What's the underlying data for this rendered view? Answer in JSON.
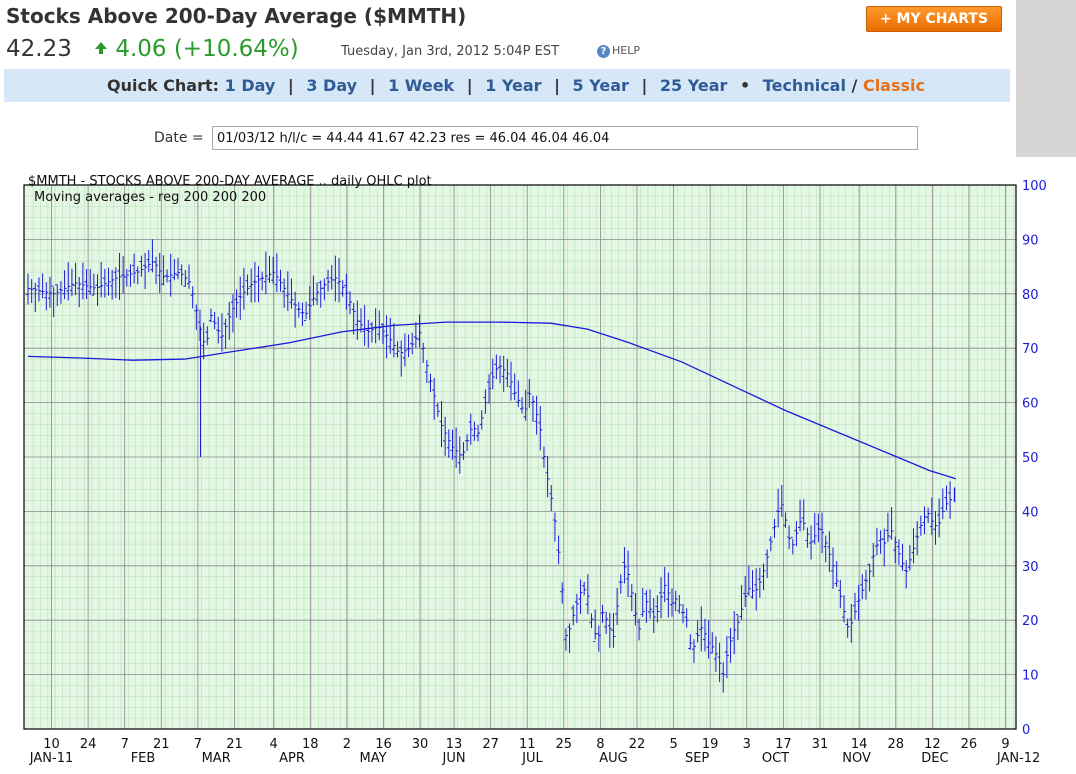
{
  "header": {
    "title": "Stocks Above 200-Day Average ($MMTH)",
    "my_charts": "+ MY CHARTS",
    "price": "42.23",
    "change": "4.06 (+10.64%)",
    "timestamp": "Tuesday, Jan 3rd, 2012 5:04P EST",
    "help": "HELP"
  },
  "quickchart": {
    "label": "Quick Chart:",
    "links": [
      "1 Day",
      "3 Day",
      "1 Week",
      "1 Year",
      "5 Year",
      "25 Year"
    ],
    "technical": "Technical",
    "slash": "/",
    "classic": "Classic"
  },
  "date_row": {
    "label": "Date =",
    "value": "01/03/12 h/l/c = 44.44 41.67 42.23 res = 46.04 46.04 46.04"
  },
  "colors": {
    "accent": "#ff8c1a",
    "link": "#2f5c95",
    "up": "#2a9a2a",
    "plot": "#1a1adb",
    "grid": "#7fcf7f"
  },
  "chart_data": {
    "type": "line",
    "title": "$MMTH - STOCKS ABOVE 200-DAY AVERAGE .. daily OHLC plot",
    "subtitle": "Moving averages - reg 200 200 200",
    "ylim": [
      0,
      100
    ],
    "yticks": [
      0,
      10,
      20,
      30,
      40,
      50,
      60,
      70,
      80,
      90,
      100
    ],
    "xlim": [
      0,
      365
    ],
    "xticks": [
      {
        "day": 9,
        "label": "10"
      },
      {
        "day": 23,
        "label": "24"
      },
      {
        "day": 37,
        "label": "7"
      },
      {
        "day": 51,
        "label": "21"
      },
      {
        "day": 65,
        "label": "7"
      },
      {
        "day": 79,
        "label": "21"
      },
      {
        "day": 94,
        "label": "4"
      },
      {
        "day": 108,
        "label": "18"
      },
      {
        "day": 122,
        "label": "2"
      },
      {
        "day": 136,
        "label": "16"
      },
      {
        "day": 150,
        "label": "30"
      },
      {
        "day": 163,
        "label": "13"
      },
      {
        "day": 177,
        "label": "27"
      },
      {
        "day": 191,
        "label": "11"
      },
      {
        "day": 205,
        "label": "25"
      },
      {
        "day": 219,
        "label": "8"
      },
      {
        "day": 233,
        "label": "22"
      },
      {
        "day": 247,
        "label": "5"
      },
      {
        "day": 261,
        "label": "19"
      },
      {
        "day": 275,
        "label": "3"
      },
      {
        "day": 289,
        "label": "17"
      },
      {
        "day": 303,
        "label": "31"
      },
      {
        "day": 318,
        "label": "14"
      },
      {
        "day": 332,
        "label": "28"
      },
      {
        "day": 346,
        "label": "12"
      },
      {
        "day": 360,
        "label": "26"
      },
      {
        "day": 374,
        "label": "9"
      }
    ],
    "month_labels": [
      {
        "day": 9,
        "label": "JAN-11"
      },
      {
        "day": 44,
        "label": "FEB"
      },
      {
        "day": 72,
        "label": "MAR"
      },
      {
        "day": 101,
        "label": "APR"
      },
      {
        "day": 132,
        "label": "MAY"
      },
      {
        "day": 163,
        "label": "JUN"
      },
      {
        "day": 193,
        "label": "JUL"
      },
      {
        "day": 224,
        "label": "AUG"
      },
      {
        "day": 256,
        "label": "SEP"
      },
      {
        "day": 286,
        "label": "OCT"
      },
      {
        "day": 317,
        "label": "NOV"
      },
      {
        "day": 347,
        "label": "DEC"
      },
      {
        "day": 379,
        "label": "JAN-12"
      }
    ],
    "series": [
      {
        "type": "ohlc",
        "points": [
          [
            0,
            81.0
          ],
          [
            10,
            80.0
          ],
          [
            18,
            82.0
          ],
          [
            26,
            81.0
          ],
          [
            34,
            83.0
          ],
          [
            42,
            84.0
          ],
          [
            48,
            86.0
          ],
          [
            52,
            83.0
          ],
          [
            58,
            84.0
          ],
          [
            62,
            82.0
          ],
          [
            64,
            78.0
          ],
          [
            66,
            73.0
          ],
          [
            68,
            70.0
          ],
          [
            70,
            76.0
          ],
          [
            74,
            72.0
          ],
          [
            78,
            77.0
          ],
          [
            82,
            80.0
          ],
          [
            86,
            82.0
          ],
          [
            90,
            83.0
          ],
          [
            94,
            84.0
          ],
          [
            98,
            81.0
          ],
          [
            102,
            78.0
          ],
          [
            106,
            76.0
          ],
          [
            110,
            80.0
          ],
          [
            114,
            82.0
          ],
          [
            118,
            83.0
          ],
          [
            122,
            80.0
          ],
          [
            126,
            75.0
          ],
          [
            130,
            73.0
          ],
          [
            134,
            74.0
          ],
          [
            138,
            72.0
          ],
          [
            142,
            69.0
          ],
          [
            146,
            70.0
          ],
          [
            150,
            73.0
          ],
          [
            152,
            68.0
          ],
          [
            154,
            64.0
          ],
          [
            156,
            60.0
          ],
          [
            158,
            56.0
          ],
          [
            160,
            54.0
          ],
          [
            162,
            52.0
          ],
          [
            164,
            51.0
          ],
          [
            166,
            50.0
          ],
          [
            168,
            53.0
          ],
          [
            170,
            56.0
          ],
          [
            172,
            54.0
          ],
          [
            174,
            58.0
          ],
          [
            176,
            62.0
          ],
          [
            178,
            65.0
          ],
          [
            180,
            67.0
          ],
          [
            182,
            66.0
          ],
          [
            184,
            65.0
          ],
          [
            186,
            62.0
          ],
          [
            188,
            60.0
          ],
          [
            190,
            58.0
          ],
          [
            192,
            62.0
          ],
          [
            194,
            59.0
          ],
          [
            196,
            55.0
          ],
          [
            198,
            48.0
          ],
          [
            200,
            43.0
          ],
          [
            202,
            37.0
          ],
          [
            204,
            28.0
          ],
          [
            206,
            16.0
          ],
          [
            208,
            20.0
          ],
          [
            210,
            23.0
          ],
          [
            212,
            26.0
          ],
          [
            214,
            25.0
          ],
          [
            216,
            19.0
          ],
          [
            218,
            16.0
          ],
          [
            220,
            22.0
          ],
          [
            222,
            19.0
          ],
          [
            224,
            17.0
          ],
          [
            226,
            25.0
          ],
          [
            228,
            30.0
          ],
          [
            230,
            28.0
          ],
          [
            232,
            22.0
          ],
          [
            234,
            18.0
          ],
          [
            236,
            24.0
          ],
          [
            238,
            22.0
          ],
          [
            240,
            20.0
          ],
          [
            242,
            24.0
          ],
          [
            244,
            27.0
          ],
          [
            246,
            23.0
          ],
          [
            248,
            24.0
          ],
          [
            250,
            22.0
          ],
          [
            252,
            20.0
          ],
          [
            254,
            14.0
          ],
          [
            256,
            17.0
          ],
          [
            258,
            19.0
          ],
          [
            260,
            16.0
          ],
          [
            262,
            15.0
          ],
          [
            264,
            13.0
          ],
          [
            266,
            10.0
          ],
          [
            268,
            15.0
          ],
          [
            270,
            18.0
          ],
          [
            272,
            20.0
          ],
          [
            274,
            24.0
          ],
          [
            276,
            26.0
          ],
          [
            278,
            25.0
          ],
          [
            280,
            27.0
          ],
          [
            282,
            30.0
          ],
          [
            284,
            34.0
          ],
          [
            286,
            38.0
          ],
          [
            288,
            42.0
          ],
          [
            290,
            38.0
          ],
          [
            292,
            33.0
          ],
          [
            294,
            36.0
          ],
          [
            296,
            39.0
          ],
          [
            298,
            36.0
          ],
          [
            300,
            34.0
          ],
          [
            302,
            37.0
          ],
          [
            304,
            36.0
          ],
          [
            306,
            33.0
          ],
          [
            308,
            30.0
          ],
          [
            310,
            26.0
          ],
          [
            312,
            22.0
          ],
          [
            314,
            18.0
          ],
          [
            318,
            24.0
          ],
          [
            322,
            29.0
          ],
          [
            324,
            33.0
          ],
          [
            326,
            35.0
          ],
          [
            328,
            34.0
          ],
          [
            330,
            37.0
          ],
          [
            332,
            34.0
          ],
          [
            334,
            31.0
          ],
          [
            336,
            29.0
          ],
          [
            338,
            32.0
          ],
          [
            340,
            35.0
          ],
          [
            342,
            38.0
          ],
          [
            344,
            40.0
          ],
          [
            346,
            38.0
          ],
          [
            348,
            37.0
          ],
          [
            350,
            40.0
          ],
          [
            352,
            42.0
          ],
          [
            353,
            42.2
          ]
        ]
      },
      {
        "type": "line",
        "name": "200",
        "points": [
          [
            0,
            68.5
          ],
          [
            20,
            68.2
          ],
          [
            40,
            67.8
          ],
          [
            60,
            68.0
          ],
          [
            80,
            69.5
          ],
          [
            100,
            71.0
          ],
          [
            120,
            73.0
          ],
          [
            140,
            74.2
          ],
          [
            160,
            74.8
          ],
          [
            180,
            74.8
          ],
          [
            200,
            74.6
          ],
          [
            214,
            73.5
          ],
          [
            230,
            71.0
          ],
          [
            250,
            67.5
          ],
          [
            270,
            63.0
          ],
          [
            290,
            58.5
          ],
          [
            310,
            54.5
          ],
          [
            330,
            50.5
          ],
          [
            345,
            47.5
          ],
          [
            355,
            46.0
          ]
        ]
      }
    ]
  }
}
